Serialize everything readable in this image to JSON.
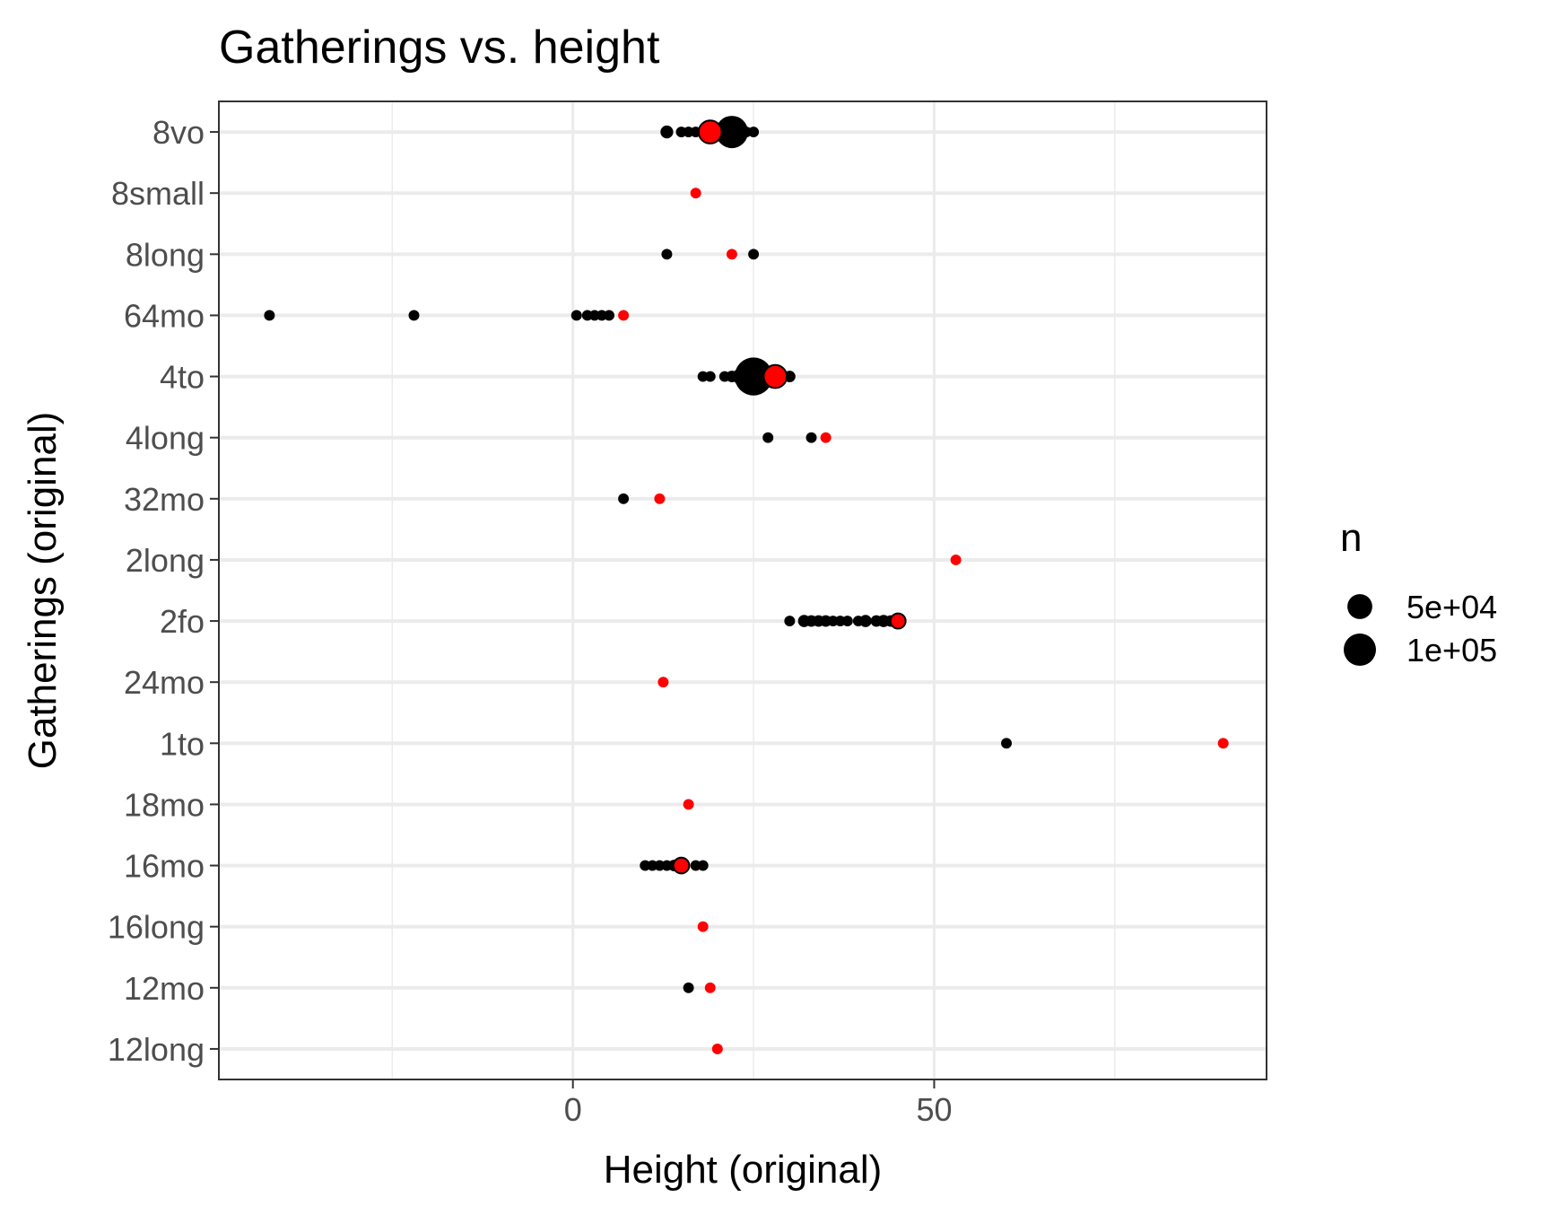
{
  "chart_data": {
    "type": "scatter",
    "title": "Gatherings vs. height",
    "xlabel": "Height (original)",
    "ylabel": "Gatherings (original)",
    "xlim": [
      -49,
      96
    ],
    "x_ticks": [
      0,
      50
    ],
    "x_minor_gridlines": [
      -25,
      25,
      75
    ],
    "categories": [
      "8vo",
      "8small",
      "8long",
      "64mo",
      "4to",
      "4long",
      "32mo",
      "2long",
      "2fo",
      "24mo",
      "1to",
      "18mo",
      "16mo",
      "16long",
      "12mo",
      "12long"
    ],
    "grid": true,
    "legend": {
      "title": "n",
      "position": "right",
      "entries": [
        {
          "label": "5e+04",
          "n": 50000
        },
        {
          "label": "1e+05",
          "n": 100000
        }
      ]
    },
    "colors": {
      "points": "#000000",
      "highlight": "#ff0000",
      "grid": "#ebebeb",
      "frame": "#333333"
    },
    "series": [
      {
        "points": [
          {
            "category": "8vo",
            "x": 13,
            "n": 5000
          },
          {
            "category": "8vo",
            "x": 15,
            "n": 2000
          },
          {
            "category": "8vo",
            "x": 16,
            "n": 2000
          },
          {
            "category": "8vo",
            "x": 17,
            "n": 2000
          },
          {
            "category": "8vo",
            "x": 18,
            "n": 3000
          },
          {
            "category": "8vo",
            "x": 22,
            "n": 100000
          },
          {
            "category": "8vo",
            "x": 24,
            "n": 2000
          },
          {
            "category": "8vo",
            "x": 25,
            "n": 2000
          },
          {
            "category": "8long",
            "x": 13,
            "n": 2000
          },
          {
            "category": "8long",
            "x": 25,
            "n": 2000
          },
          {
            "category": "64mo",
            "x": -42,
            "n": 2000
          },
          {
            "category": "64mo",
            "x": -22,
            "n": 2000
          },
          {
            "category": "64mo",
            "x": 0.5,
            "n": 2000
          },
          {
            "category": "64mo",
            "x": 2,
            "n": 2000
          },
          {
            "category": "64mo",
            "x": 3,
            "n": 2000
          },
          {
            "category": "64mo",
            "x": 4,
            "n": 2000
          },
          {
            "category": "64mo",
            "x": 5,
            "n": 2000
          },
          {
            "category": "4to",
            "x": 18,
            "n": 2000
          },
          {
            "category": "4to",
            "x": 19,
            "n": 2000
          },
          {
            "category": "4to",
            "x": 21,
            "n": 2000
          },
          {
            "category": "4to",
            "x": 22,
            "n": 3000
          },
          {
            "category": "4to",
            "x": 23,
            "n": 8000
          },
          {
            "category": "4to",
            "x": 24,
            "n": 20000
          },
          {
            "category": "4to",
            "x": 25,
            "n": 150000
          },
          {
            "category": "4to",
            "x": 27,
            "n": 5000
          },
          {
            "category": "4to",
            "x": 29,
            "n": 4000
          },
          {
            "category": "4to",
            "x": 30,
            "n": 3000
          },
          {
            "category": "4long",
            "x": 27,
            "n": 2000
          },
          {
            "category": "4long",
            "x": 33,
            "n": 2000
          },
          {
            "category": "32mo",
            "x": 7,
            "n": 2000
          },
          {
            "category": "2fo",
            "x": 30,
            "n": 2000
          },
          {
            "category": "2fo",
            "x": 32,
            "n": 4000
          },
          {
            "category": "2fo",
            "x": 33,
            "n": 3000
          },
          {
            "category": "2fo",
            "x": 34,
            "n": 3000
          },
          {
            "category": "2fo",
            "x": 35,
            "n": 3000
          },
          {
            "category": "2fo",
            "x": 36,
            "n": 2000
          },
          {
            "category": "2fo",
            "x": 37,
            "n": 2000
          },
          {
            "category": "2fo",
            "x": 38,
            "n": 2000
          },
          {
            "category": "2fo",
            "x": 39.5,
            "n": 2000
          },
          {
            "category": "2fo",
            "x": 40.5,
            "n": 4000
          },
          {
            "category": "2fo",
            "x": 42,
            "n": 3000
          },
          {
            "category": "2fo",
            "x": 43,
            "n": 4000
          },
          {
            "category": "2fo",
            "x": 44,
            "n": 3000
          },
          {
            "category": "1to",
            "x": 60,
            "n": 2000
          },
          {
            "category": "16mo",
            "x": 10,
            "n": 2000
          },
          {
            "category": "16mo",
            "x": 11,
            "n": 2000
          },
          {
            "category": "16mo",
            "x": 12,
            "n": 2000
          },
          {
            "category": "16mo",
            "x": 13,
            "n": 2000
          },
          {
            "category": "16mo",
            "x": 14,
            "n": 3000
          },
          {
            "category": "16mo",
            "x": 17,
            "n": 2000
          },
          {
            "category": "16mo",
            "x": 18,
            "n": 2000
          },
          {
            "category": "12mo",
            "x": 16,
            "n": 2000
          }
        ]
      },
      {
        "highlight": true,
        "points": [
          {
            "category": "8vo",
            "x": 19,
            "n": 40000
          },
          {
            "category": "8small",
            "x": 17,
            "n": 2000
          },
          {
            "category": "8long",
            "x": 22,
            "n": 2000
          },
          {
            "category": "64mo",
            "x": 7,
            "n": 2000
          },
          {
            "category": "4to",
            "x": 28,
            "n": 40000
          },
          {
            "category": "4long",
            "x": 35,
            "n": 2000
          },
          {
            "category": "32mo",
            "x": 12,
            "n": 2000
          },
          {
            "category": "2long",
            "x": 53,
            "n": 2000
          },
          {
            "category": "2fo",
            "x": 45,
            "n": 10000
          },
          {
            "category": "24mo",
            "x": 12.5,
            "n": 2000
          },
          {
            "category": "1to",
            "x": 90,
            "n": 2000
          },
          {
            "category": "18mo",
            "x": 16,
            "n": 2000
          },
          {
            "category": "16mo",
            "x": 15,
            "n": 12000
          },
          {
            "category": "16long",
            "x": 18,
            "n": 2000
          },
          {
            "category": "12mo",
            "x": 19,
            "n": 2000
          },
          {
            "category": "12long",
            "x": 20,
            "n": 2000
          }
        ]
      }
    ]
  }
}
